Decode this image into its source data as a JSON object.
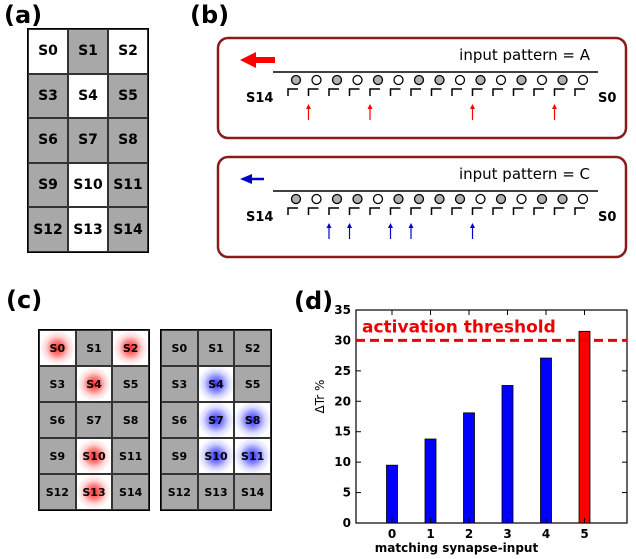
{
  "panel_labels": {
    "a": "(a)",
    "b": "(b)",
    "c": "(c)",
    "d": "(d)"
  },
  "grid_a": {
    "cells": [
      {
        "label": "S0",
        "shade": "white"
      },
      {
        "label": "S1",
        "shade": "gray"
      },
      {
        "label": "S2",
        "shade": "white"
      },
      {
        "label": "S3",
        "shade": "gray"
      },
      {
        "label": "S4",
        "shade": "white"
      },
      {
        "label": "S5",
        "shade": "gray"
      },
      {
        "label": "S6",
        "shade": "gray"
      },
      {
        "label": "S7",
        "shade": "gray"
      },
      {
        "label": "S8",
        "shade": "gray"
      },
      {
        "label": "S9",
        "shade": "gray"
      },
      {
        "label": "S10",
        "shade": "white"
      },
      {
        "label": "S11",
        "shade": "gray"
      },
      {
        "label": "S12",
        "shade": "gray"
      },
      {
        "label": "S13",
        "shade": "white"
      },
      {
        "label": "S14",
        "shade": "gray"
      }
    ]
  },
  "panel_b": {
    "box_color": "#8b1a1a",
    "rows": [
      {
        "title": "input pattern = A",
        "left_label": "S14",
        "right_label": "S0",
        "arrow_color": "#ff0000",
        "arrow_weight": "thick",
        "filled": [
          1,
          0,
          1,
          0,
          1,
          0,
          1,
          1,
          0,
          1,
          0,
          1,
          0,
          1,
          0
        ],
        "inputs": [
          1,
          4,
          9,
          13
        ]
      },
      {
        "title": "input pattern = C",
        "left_label": "S14",
        "right_label": "S0",
        "arrow_color": "#0000cc",
        "arrow_weight": "thin",
        "filled": [
          1,
          0,
          1,
          1,
          0,
          1,
          1,
          1,
          1,
          0,
          1,
          0,
          1,
          1,
          0
        ],
        "inputs": [
          2,
          3,
          5,
          6,
          9
        ]
      }
    ]
  },
  "grid_c_left": {
    "labels": [
      "S0",
      "S1",
      "S2",
      "S3",
      "S4",
      "S5",
      "S6",
      "S7",
      "S8",
      "S9",
      "S10",
      "S11",
      "S12",
      "S13",
      "S14"
    ],
    "glow": [
      0,
      2,
      4,
      10,
      13
    ],
    "glow_color": "red"
  },
  "grid_c_right": {
    "labels": [
      "S0",
      "S1",
      "S2",
      "S3",
      "S4",
      "S5",
      "S6",
      "S7",
      "S8",
      "S9",
      "S10",
      "S11",
      "S12",
      "S13",
      "S14"
    ],
    "glow": [
      4,
      7,
      8,
      10,
      11
    ],
    "glow_color": "blue"
  },
  "chart_data": {
    "type": "bar",
    "categories": [
      "0",
      "1",
      "2",
      "3",
      "4",
      "5"
    ],
    "values": [
      9.5,
      13.8,
      18.1,
      22.6,
      27.1,
      31.5
    ],
    "bar_colors": [
      "#0000ff",
      "#0000ff",
      "#0000ff",
      "#0000ff",
      "#0000ff",
      "#ff0000"
    ],
    "xlabel": "matching synapse-input",
    "ylabel": "ΔTr %",
    "ylim": [
      0,
      35
    ],
    "yticks": [
      0,
      5,
      10,
      15,
      20,
      25,
      30,
      35
    ],
    "threshold": {
      "value": 30,
      "label": "activation threshold",
      "color": "#ee0000"
    },
    "grid": false
  }
}
